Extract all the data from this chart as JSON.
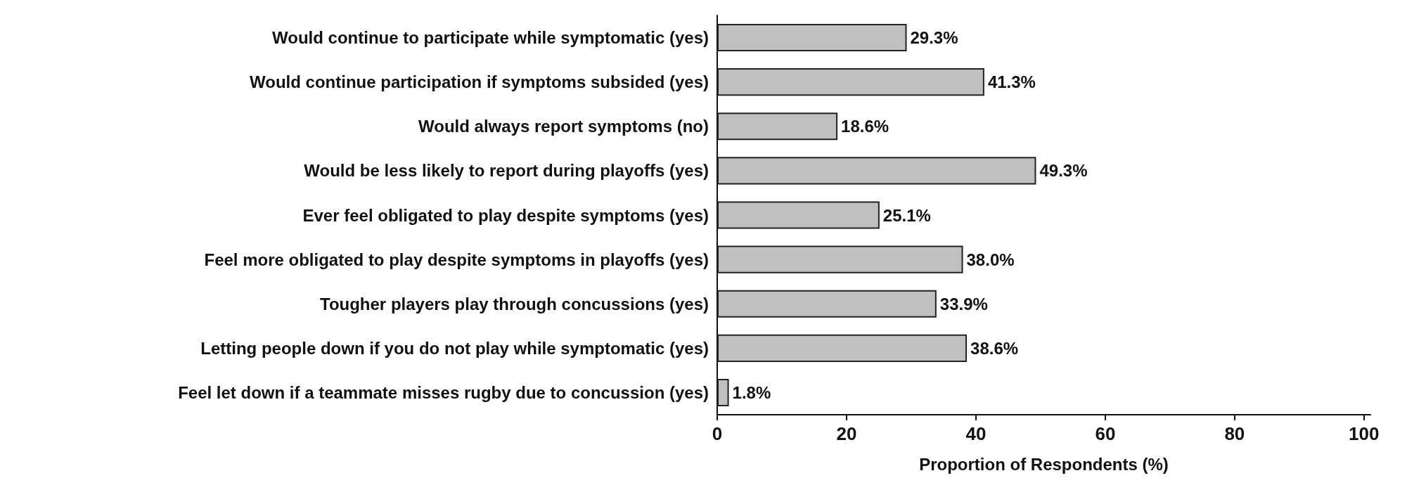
{
  "chart_data": {
    "type": "bar",
    "orientation": "horizontal",
    "xlabel": "Proportion of Respondents (%)",
    "categories": [
      "Would continue to participate while symptomatic (yes)",
      "Would continue participation if symptoms subsided (yes)",
      "Would always report symptoms (no)",
      "Would be less likely to report during playoffs (yes)",
      "Ever feel obligated to play despite symptoms (yes)",
      "Feel more obligated to play despite symptoms in playoffs (yes)",
      "Tougher players play through concussions (yes)",
      "Letting people down if you do not play while symptomatic (yes)",
      "Feel let down if a teammate misses rugby due to concussion (yes)"
    ],
    "values": [
      29.3,
      41.3,
      18.6,
      49.3,
      25.1,
      38.0,
      33.9,
      38.6,
      1.8
    ],
    "value_labels": [
      "29.3%",
      "41.3%",
      "18.6%",
      "49.3%",
      "25.1%",
      "38.0%",
      "33.9%",
      "38.6%",
      "1.8%"
    ],
    "color": "#c0c0c0",
    "xlim": [
      0,
      101
    ],
    "xticks": [
      0,
      20,
      40,
      60,
      80,
      100
    ]
  }
}
